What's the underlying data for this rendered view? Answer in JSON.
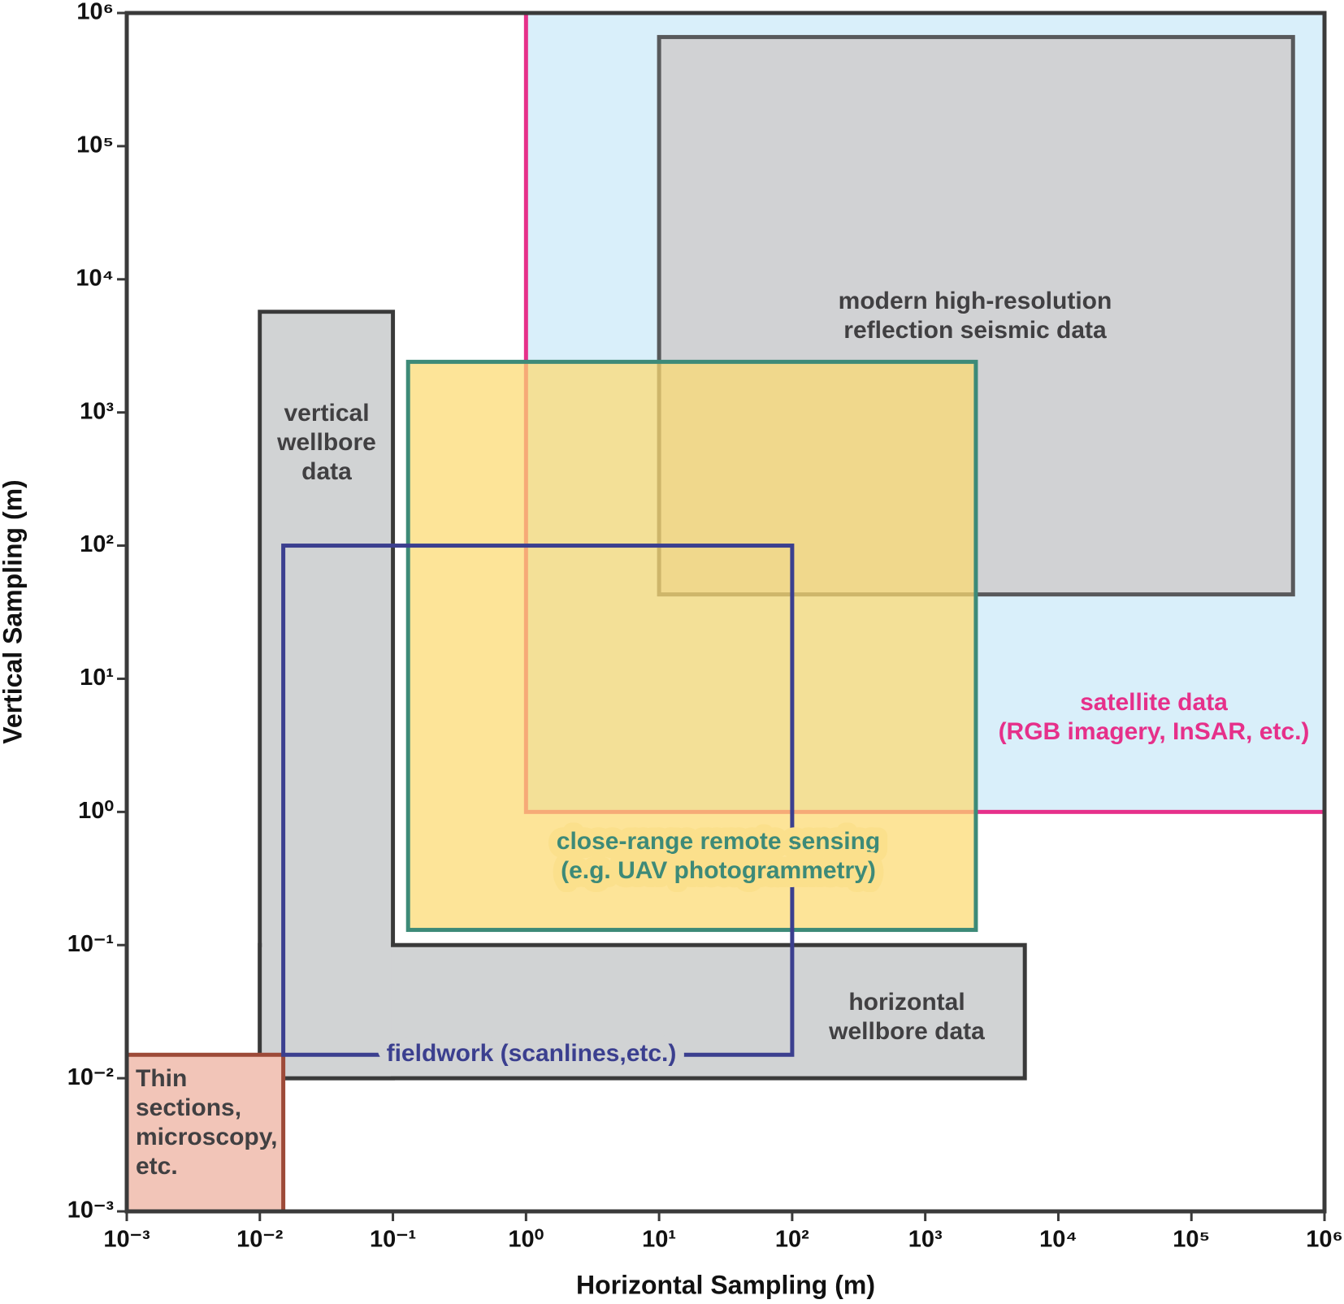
{
  "chart_data": {
    "type": "region",
    "xlabel": "Horizontal Sampling (m)",
    "ylabel": "Vertical Sampling (m)",
    "xscale": "log",
    "yscale": "log",
    "xlim": [
      0.001,
      1000000
    ],
    "ylim": [
      0.001,
      1000000
    ],
    "xticks": [
      {
        "value": 0.001,
        "label": "10⁻³"
      },
      {
        "value": 0.01,
        "label": "10⁻²"
      },
      {
        "value": 0.1,
        "label": "10⁻¹"
      },
      {
        "value": 1,
        "label": "10⁰"
      },
      {
        "value": 10,
        "label": "10¹"
      },
      {
        "value": 100,
        "label": "10²"
      },
      {
        "value": 1000,
        "label": "10³"
      },
      {
        "value": 10000,
        "label": "10⁴"
      },
      {
        "value": 100000,
        "label": "10⁵"
      },
      {
        "value": 1000000,
        "label": "10⁶"
      }
    ],
    "yticks": [
      {
        "value": 0.001,
        "label": "10⁻³"
      },
      {
        "value": 0.01,
        "label": "10⁻²"
      },
      {
        "value": 0.1,
        "label": "10⁻¹"
      },
      {
        "value": 1,
        "label": "10⁰"
      },
      {
        "value": 10,
        "label": "10¹"
      },
      {
        "value": 100,
        "label": "10²"
      },
      {
        "value": 1000,
        "label": "10³"
      },
      {
        "value": 10000,
        "label": "10⁴"
      },
      {
        "value": 100000,
        "label": "10⁵"
      },
      {
        "value": 1000000,
        "label": "10⁶"
      }
    ],
    "regions": [
      {
        "label": [
          "satellite data",
          "(RGB imagery, InSAR, etc.)"
        ],
        "x": [
          1,
          1000000
        ],
        "y": [
          1,
          1000000
        ],
        "fill": "#d9effa",
        "stroke": "#e6308a",
        "label_color": "#e6308a"
      },
      {
        "label": [
          "modern high-resolution",
          "reflection seismic data"
        ],
        "x": [
          10,
          580000
        ],
        "y": [
          43,
          660000
        ],
        "fill": "#d1d2d4",
        "stroke": "#58595b",
        "label_color": "#414042"
      },
      {
        "label": [
          "vertical",
          "wellbore",
          "data"
        ],
        "x": [
          0.01,
          0.1
        ],
        "y": [
          0.01,
          5700
        ],
        "fill": "#d1d3d4",
        "stroke": "#3a3a3a",
        "label_color": "#414042"
      },
      {
        "label": [
          "horizontal",
          "wellbore data"
        ],
        "x": [
          0.01,
          5600
        ],
        "y": [
          0.01,
          0.1
        ],
        "fill": "#d1d3d4",
        "stroke": "#3a3a3a",
        "label_color": "#414042"
      },
      {
        "label": [
          "Thin",
          "sections,",
          "microscopy,",
          "etc."
        ],
        "x": [
          0.001,
          0.015
        ],
        "y": [
          0.001,
          0.015
        ],
        "fill": "#f2c5b8",
        "stroke": "#9d4a38",
        "label_color": "#414042"
      },
      {
        "label": [
          "close-range remote sensing",
          "(e.g. UAV photogrammetry)"
        ],
        "x": [
          0.13,
          2400
        ],
        "y": [
          0.13,
          2400
        ],
        "fill": "#fcd970",
        "stroke": "#3d8a78",
        "label_color": "#3d8a78"
      },
      {
        "label": [
          "fieldwork (scanlines,etc.)"
        ],
        "x": [
          0.015,
          100
        ],
        "y": [
          0.015,
          100
        ],
        "stroke": "#3b3f8f",
        "label_color": "#3b3f8f"
      }
    ]
  }
}
